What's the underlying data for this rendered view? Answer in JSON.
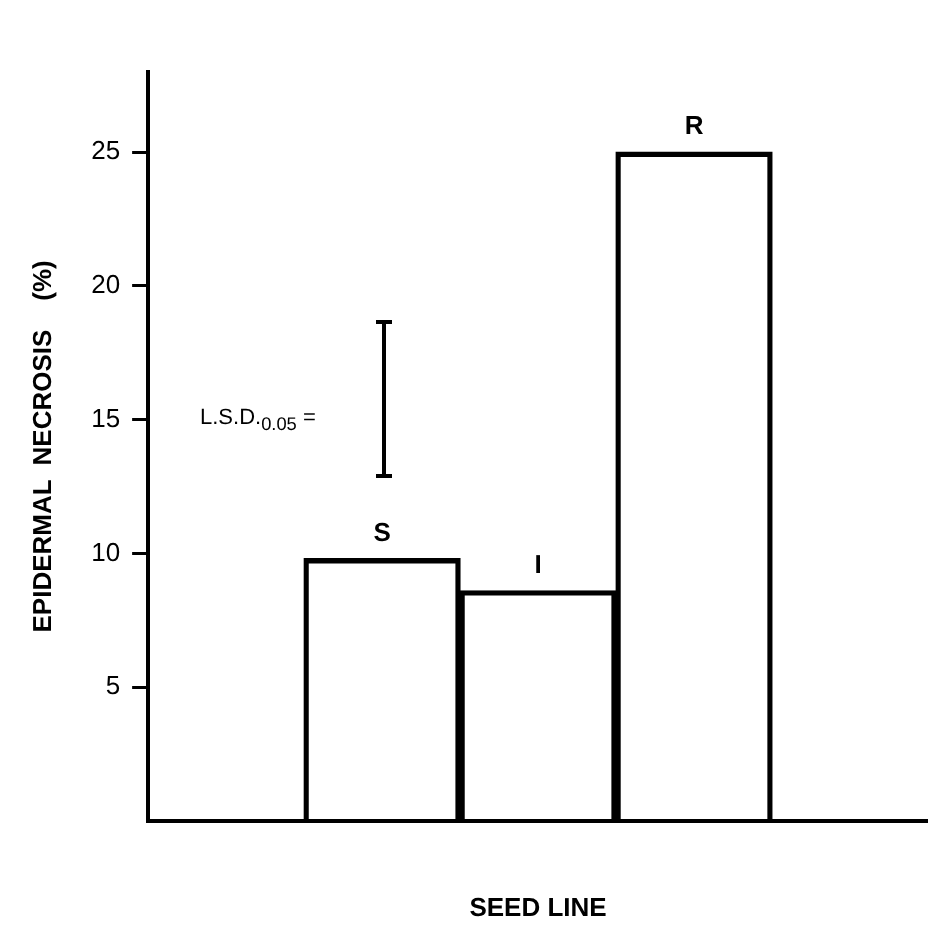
{
  "chart_data": {
    "type": "bar",
    "xlabel": "SEED LINE",
    "ylabel": "EPIDERMAL  NECROSIS    (%)",
    "categories": [
      null,
      "S",
      "I",
      "R",
      null
    ],
    "values": [
      null,
      9.8,
      8.6,
      25,
      null
    ],
    "color": "#000000",
    "ylim": [
      0,
      28
    ],
    "yticks": [
      5,
      10,
      15,
      20,
      25
    ],
    "grid": false,
    "legend": false,
    "tick_labels": "y",
    "annotations": [
      "L.S.D.$_{0.05}$ ="
    ]
  }
}
